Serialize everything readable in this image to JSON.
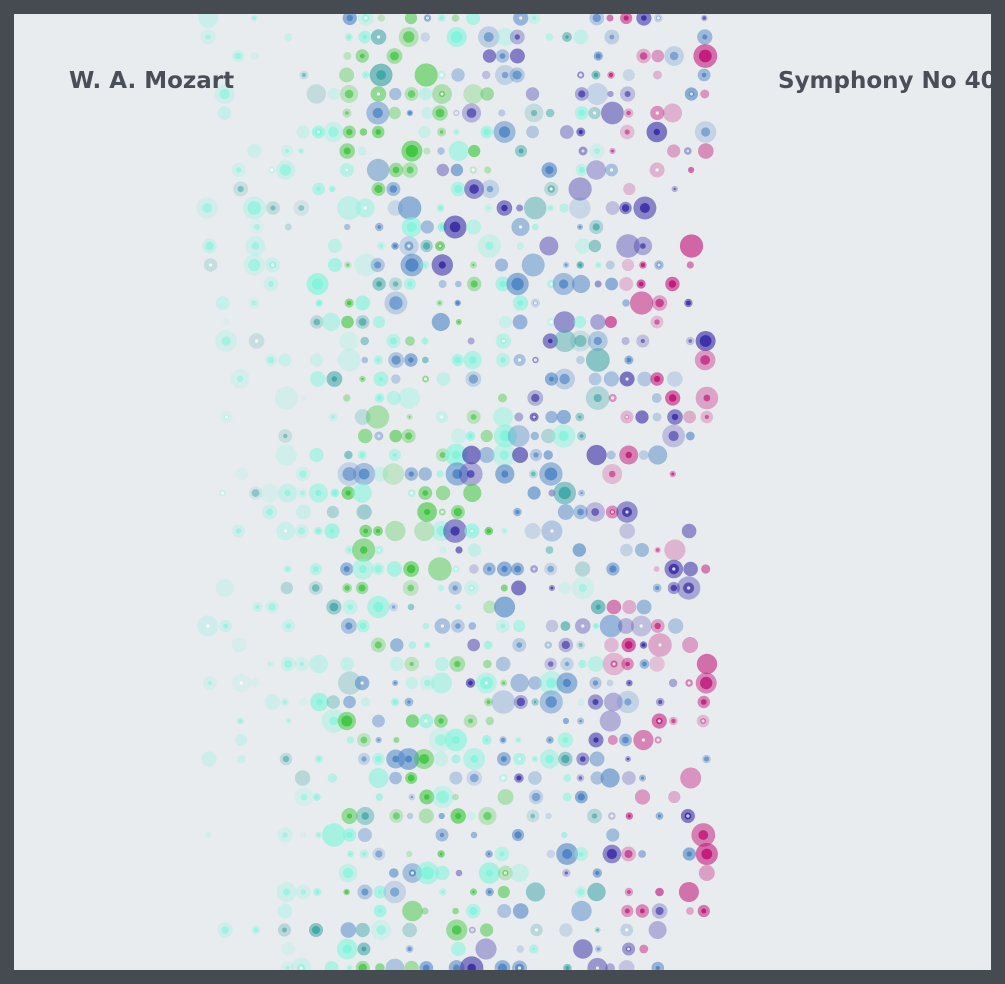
{
  "poster": {
    "composer": "W. A. Mozart",
    "work": "Symphony No 40"
  },
  "colors": {
    "background": "#e9ecef",
    "frame": "#464b52",
    "text": "#4a4f57",
    "aqua": "#7ff5dc",
    "teal": "#3fa6a6",
    "green": "#3cc63c",
    "steel_blue": "#4f86c6",
    "indigo": "#3a2fa8",
    "magenta": "#c2187a"
  }
}
